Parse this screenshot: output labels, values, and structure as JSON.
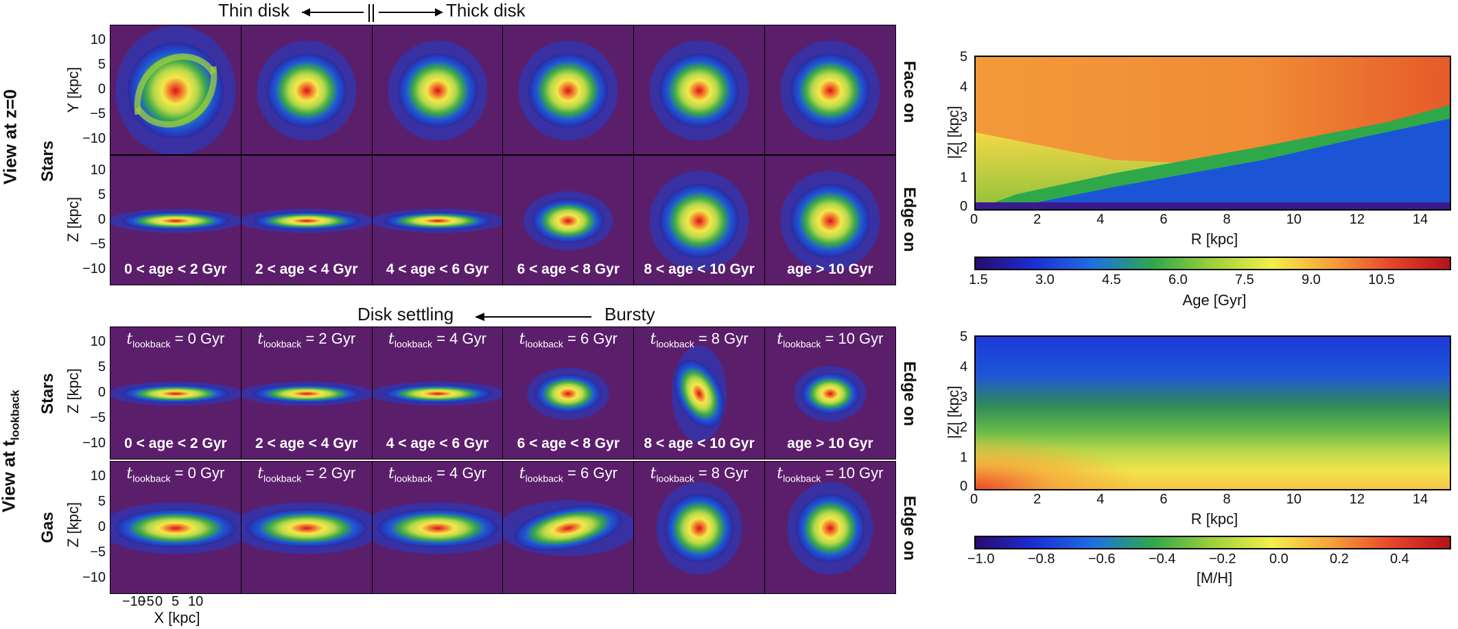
{
  "header_arrow": {
    "left": "Thin disk",
    "right": "Thick disk"
  },
  "middle_arrow": {
    "left": "Disk settling",
    "right": "Bursty"
  },
  "side_title_top": "View at z=0",
  "side_title_bottom_main": "View at t",
  "side_title_bottom_sub": "lookback",
  "row_labels": {
    "stars": "Stars",
    "gas": "Gas"
  },
  "right_labels": {
    "face_on": "Face on",
    "edge_on": "Edge on"
  },
  "axis_labels": {
    "y_kpc": "Y [kpc]",
    "z_kpc": "Z [kpc]",
    "x_kpc": "X [kpc]"
  },
  "y_ticks": [
    "10",
    "5",
    "0",
    "−5",
    "−10"
  ],
  "x_ticks": [
    "−10",
    "−5",
    "0",
    "5",
    "10"
  ],
  "age_bins": [
    "0 < age < 2 Gyr",
    "2 < age < 4 Gyr",
    "4 < age < 6 Gyr",
    "6 < age < 8 Gyr",
    "8 < age < 10 Gyr",
    "age > 10 Gyr"
  ],
  "lookback_var": "t",
  "lookback_sub": "lookback",
  "lookback_times": [
    "= 0 Gyr",
    "= 2 Gyr",
    "= 4 Gyr",
    "= 6 Gyr",
    "= 8 Gyr",
    "= 10 Gyr"
  ],
  "heatmap_top": {
    "xlabel": "R [kpc]",
    "ylabel": "|Z| [kpc]",
    "x_ticks": [
      "0",
      "2",
      "4",
      "6",
      "8",
      "10",
      "12",
      "14"
    ],
    "y_ticks": [
      "0",
      "1",
      "2",
      "3",
      "4",
      "5"
    ],
    "colorbar_label": "Age [Gyr]",
    "colorbar_ticks": [
      "1.5",
      "3.0",
      "4.5",
      "6.0",
      "7.5",
      "9.0",
      "10.5"
    ]
  },
  "heatmap_bottom": {
    "xlabel": "R [kpc]",
    "ylabel": "|Z| [kpc]",
    "x_ticks": [
      "0",
      "2",
      "4",
      "6",
      "8",
      "10",
      "12",
      "14"
    ],
    "y_ticks": [
      "0",
      "1",
      "2",
      "3",
      "4",
      "5"
    ],
    "colorbar_label": "[M/H]",
    "colorbar_ticks": [
      "−1.0",
      "−0.8",
      "−0.6",
      "−0.4",
      "−0.2",
      "0.0",
      "0.2",
      "0.4"
    ]
  },
  "colors": {
    "panel_bg": "#5b1e6b",
    "colormap": [
      "#2a0a6e",
      "#1b2fd6",
      "#1e72e0",
      "#2fa84a",
      "#9fd13a",
      "#f4ef4a",
      "#f6a13a",
      "#e8462a",
      "#b3121a"
    ]
  }
}
